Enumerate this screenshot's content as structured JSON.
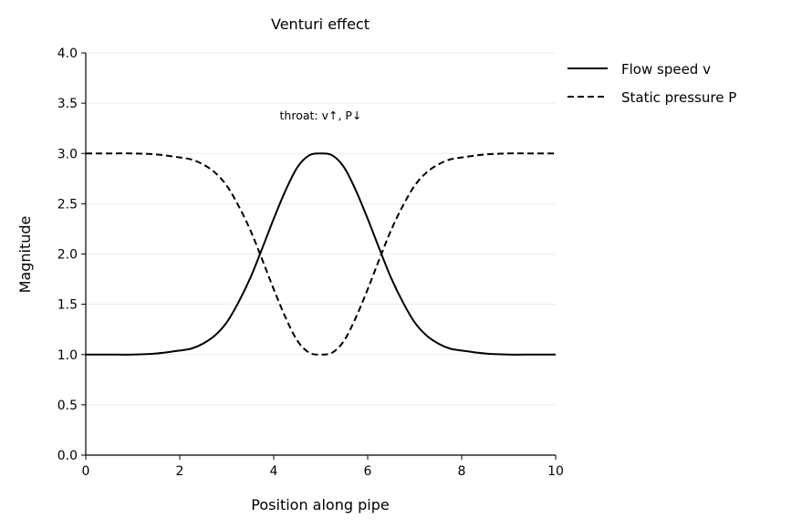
{
  "chart_data": {
    "type": "line",
    "title": "Venturi effect",
    "xlabel": "Position along pipe",
    "ylabel": "Magnitude",
    "xlim": [
      0,
      10
    ],
    "ylim": [
      0,
      4
    ],
    "xticks": [
      0,
      2,
      4,
      6,
      8,
      10
    ],
    "xtick_labels": [
      "0",
      "2",
      "4",
      "6",
      "8",
      "10"
    ],
    "yticks": [
      0,
      0.5,
      1,
      1.5,
      2,
      2.5,
      3,
      3.5,
      4
    ],
    "ytick_labels": [
      "0.0",
      "0.5",
      "1.0",
      "1.5",
      "2.0",
      "2.5",
      "3.0",
      "3.5",
      "4.0"
    ],
    "grid": "horizontal",
    "legend_position": "outside-top-right",
    "annotation": {
      "text": "throat: v↑, P↓",
      "x": 5,
      "y": 3.4
    },
    "x": [
      0,
      0.5,
      1,
      1.5,
      2,
      2.25,
      2.5,
      2.75,
      3,
      3.25,
      3.5,
      3.75,
      4,
      4.25,
      4.5,
      4.75,
      5,
      5.25,
      5.5,
      5.75,
      6,
      6.25,
      6.5,
      6.75,
      7,
      7.25,
      7.5,
      7.75,
      8,
      8.5,
      9,
      9.5,
      10
    ],
    "series": [
      {
        "name": "Flow speed v",
        "style": "solid",
        "color": "#000000",
        "values": [
          1.0,
          1.0,
          1.0,
          1.01,
          1.04,
          1.06,
          1.11,
          1.19,
          1.32,
          1.52,
          1.76,
          2.05,
          2.35,
          2.63,
          2.86,
          2.98,
          3.0,
          2.98,
          2.86,
          2.63,
          2.35,
          2.05,
          1.76,
          1.52,
          1.32,
          1.19,
          1.11,
          1.06,
          1.04,
          1.01,
          1.0,
          1.0,
          1.0
        ]
      },
      {
        "name": "Static pressure P",
        "style": "dashed",
        "color": "#000000",
        "values": [
          3.0,
          3.0,
          3.0,
          2.99,
          2.96,
          2.94,
          2.89,
          2.81,
          2.68,
          2.48,
          2.24,
          1.95,
          1.65,
          1.37,
          1.14,
          1.02,
          1.0,
          1.02,
          1.14,
          1.37,
          1.65,
          1.95,
          2.24,
          2.48,
          2.68,
          2.81,
          2.89,
          2.94,
          2.96,
          2.99,
          3.0,
          3.0,
          3.0
        ]
      }
    ]
  }
}
